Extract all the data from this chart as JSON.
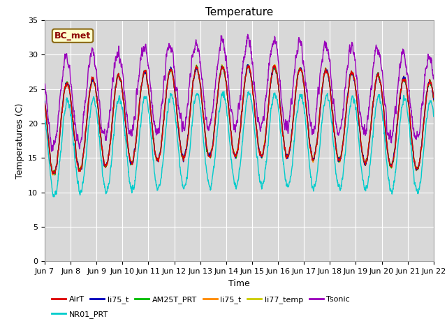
{
  "title": "Temperature",
  "ylabel": "Temperatures (C)",
  "xlabel": "Time",
  "ylim": [
    0,
    35
  ],
  "yticks": [
    0,
    5,
    10,
    15,
    20,
    25,
    30,
    35
  ],
  "n_days": 15,
  "x_tick_labels": [
    "Jun 7",
    "Jun 8",
    "Jun 9",
    "Jun 10",
    "Jun 11",
    "Jun 12",
    "Jun 13",
    "Jun 14",
    "Jun 15",
    "Jun 16",
    "Jun 17",
    "Jun 18",
    "Jun 19",
    "Jun 20",
    "Jun 21",
    "Jun 22"
  ],
  "annotation_text": "BC_met",
  "legend_labels": [
    "AirT",
    "li75_t",
    "AM25T_PRT",
    "li75_t",
    "li77_temp",
    "Tsonic",
    "NR01_PRT"
  ],
  "legend_colors": [
    "#dd0000",
    "#0000bb",
    "#00bb00",
    "#ff8800",
    "#cccc00",
    "#9900bb",
    "#00cccc"
  ],
  "background_plot": "#d8d8d8",
  "background_fig": "#ffffff",
  "grid_color": "#ffffff",
  "title_fontsize": 11,
  "label_fontsize": 9,
  "tick_fontsize": 8,
  "linewidth": 1.0
}
